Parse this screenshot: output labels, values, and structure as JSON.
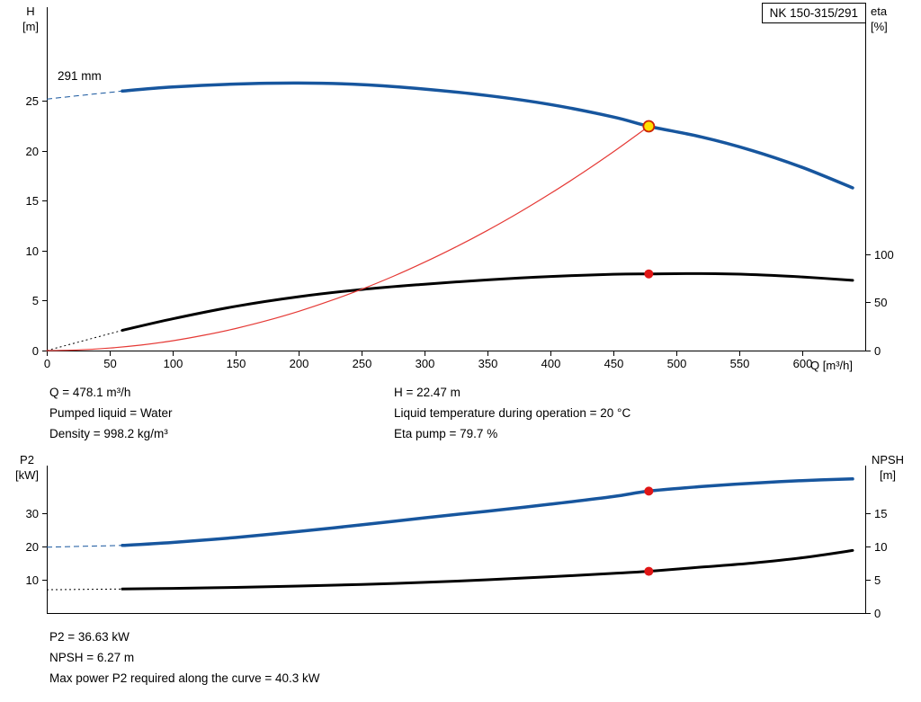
{
  "pump": {
    "type": "NK 150-315/291"
  },
  "colors": {
    "curve_blue": "#17569e",
    "curve_black": "#000000",
    "system_red": "#e53935",
    "marker_red": "#e01616",
    "marker_yellow": "#ffdf00",
    "marker_stroke": "#cc2200",
    "axis": "#000000"
  },
  "results": {
    "top_left": [
      "Q = 478.1 m³/h",
      "Pumped liquid = Water",
      "Density = 998.2 kg/m³"
    ],
    "top_right": [
      "H = 22.47 m",
      "Liquid temperature during operation = 20 °C",
      "Eta pump = 79.7 %"
    ],
    "bottom": [
      "P2 = 36.63 kW",
      "NPSH = 6.27 m",
      "Max power P2 required along the curve = 40.3 kW"
    ]
  },
  "chart_data": [
    {
      "type": "line",
      "title": "QH and efficiency curves",
      "axis_titles": {
        "left": [
          "H",
          "[m]"
        ],
        "right": [
          "eta",
          "[%]"
        ],
        "x": "Q [m³/h]"
      },
      "annotations": [
        {
          "text": "291 mm",
          "x": 30,
          "y": 27.6
        }
      ],
      "xlim": [
        0,
        650
      ],
      "x_ticks": [
        0,
        50,
        100,
        150,
        200,
        250,
        300,
        350,
        400,
        450,
        500,
        550,
        600
      ],
      "ylim_left": [
        0,
        34.4
      ],
      "y_ticks_left": [
        0,
        5,
        10,
        15,
        20,
        25
      ],
      "ylim_right": [
        0,
        357
      ],
      "y_ticks_right": [
        0,
        50,
        100
      ],
      "grid": false,
      "series": [
        {
          "name": "head-curve-291mm",
          "axis": "left",
          "color": "#17569e",
          "width": 3.5,
          "dashed_lead": [
            [
              0,
              25.2
            ],
            [
              60,
              26.0
            ]
          ],
          "points": [
            [
              60,
              26.0
            ],
            [
              100,
              26.4
            ],
            [
              150,
              26.7
            ],
            [
              200,
              26.8
            ],
            [
              250,
              26.65
            ],
            [
              300,
              26.2
            ],
            [
              350,
              25.55
            ],
            [
              400,
              24.65
            ],
            [
              450,
              23.4
            ],
            [
              478.1,
              22.47
            ],
            [
              520,
              21.4
            ],
            [
              560,
              20.05
            ],
            [
              600,
              18.35
            ],
            [
              640,
              16.3
            ]
          ]
        },
        {
          "name": "eta-pump-curve",
          "axis": "right",
          "color": "#000000",
          "width": 3,
          "dashed_lead": [
            [
              0,
              0
            ],
            [
              60,
              21
            ]
          ],
          "points": [
            [
              60,
              21
            ],
            [
              100,
              33
            ],
            [
              150,
              46
            ],
            [
              200,
              56
            ],
            [
              250,
              63.5
            ],
            [
              300,
              69
            ],
            [
              350,
              73.5
            ],
            [
              400,
              77
            ],
            [
              450,
              79.3
            ],
            [
              478.1,
              79.7
            ],
            [
              520,
              80
            ],
            [
              560,
              79
            ],
            [
              600,
              76.5
            ],
            [
              640,
              73
            ]
          ]
        },
        {
          "name": "system-curve",
          "axis": "left",
          "color": "#e53935",
          "width": 1.2,
          "points": [
            [
              0,
              0
            ],
            [
              25,
              0.06
            ],
            [
              50,
              0.25
            ],
            [
              75,
              0.55
            ],
            [
              100,
              0.98
            ],
            [
              125,
              1.54
            ],
            [
              150,
              2.21
            ],
            [
              175,
              3.01
            ],
            [
              200,
              3.93
            ],
            [
              225,
              4.98
            ],
            [
              250,
              6.14
            ],
            [
              275,
              7.43
            ],
            [
              300,
              8.85
            ],
            [
              325,
              10.38
            ],
            [
              350,
              12.04
            ],
            [
              375,
              13.82
            ],
            [
              400,
              15.73
            ],
            [
              425,
              17.76
            ],
            [
              450,
              19.91
            ],
            [
              478.1,
              22.47
            ]
          ]
        }
      ],
      "markers": [
        {
          "x": 478.1,
          "y": 22.47,
          "axis": "left",
          "style": "duty-point"
        },
        {
          "x": 478.1,
          "y": 79.7,
          "axis": "right",
          "style": "dot"
        }
      ]
    },
    {
      "type": "line",
      "title": "P2 and NPSH curves",
      "axis_titles": {
        "left": [
          "P2",
          "[kW]"
        ],
        "right": [
          "NPSH",
          "[m]"
        ],
        "x": ""
      },
      "xlim": [
        0,
        650
      ],
      "x_ticks": [],
      "ylim_left": [
        0,
        44.3
      ],
      "y_ticks_left": [
        10,
        20,
        30
      ],
      "ylim_right": [
        0,
        22.15
      ],
      "y_ticks_right": [
        0,
        5,
        10,
        15
      ],
      "grid": false,
      "series": [
        {
          "name": "p2-curve",
          "axis": "left",
          "color": "#17569e",
          "width": 3.5,
          "dashed_lead": [
            [
              0,
              19.8
            ],
            [
              60,
              20.3
            ]
          ],
          "points": [
            [
              60,
              20.3
            ],
            [
              100,
              21.2
            ],
            [
              150,
              22.7
            ],
            [
              200,
              24.5
            ],
            [
              250,
              26.5
            ],
            [
              300,
              28.6
            ],
            [
              350,
              30.6
            ],
            [
              400,
              32.7
            ],
            [
              450,
              35.0
            ],
            [
              478.1,
              36.63
            ],
            [
              520,
              38.0
            ],
            [
              560,
              39.0
            ],
            [
              600,
              39.8
            ],
            [
              640,
              40.3
            ]
          ]
        },
        {
          "name": "npsh-curve",
          "axis": "right",
          "color": "#000000",
          "width": 3,
          "dashed_lead": [
            [
              0,
              3.5
            ],
            [
              60,
              3.6
            ]
          ],
          "points": [
            [
              60,
              3.6
            ],
            [
              100,
              3.7
            ],
            [
              150,
              3.85
            ],
            [
              200,
              4.05
            ],
            [
              250,
              4.3
            ],
            [
              300,
              4.6
            ],
            [
              350,
              5.0
            ],
            [
              400,
              5.45
            ],
            [
              450,
              5.95
            ],
            [
              478.1,
              6.27
            ],
            [
              520,
              6.9
            ],
            [
              560,
              7.5
            ],
            [
              600,
              8.3
            ],
            [
              640,
              9.4
            ]
          ]
        }
      ],
      "markers": [
        {
          "x": 478.1,
          "y": 36.63,
          "axis": "left",
          "style": "dot"
        },
        {
          "x": 478.1,
          "y": 6.27,
          "axis": "right",
          "style": "dot"
        }
      ]
    }
  ]
}
